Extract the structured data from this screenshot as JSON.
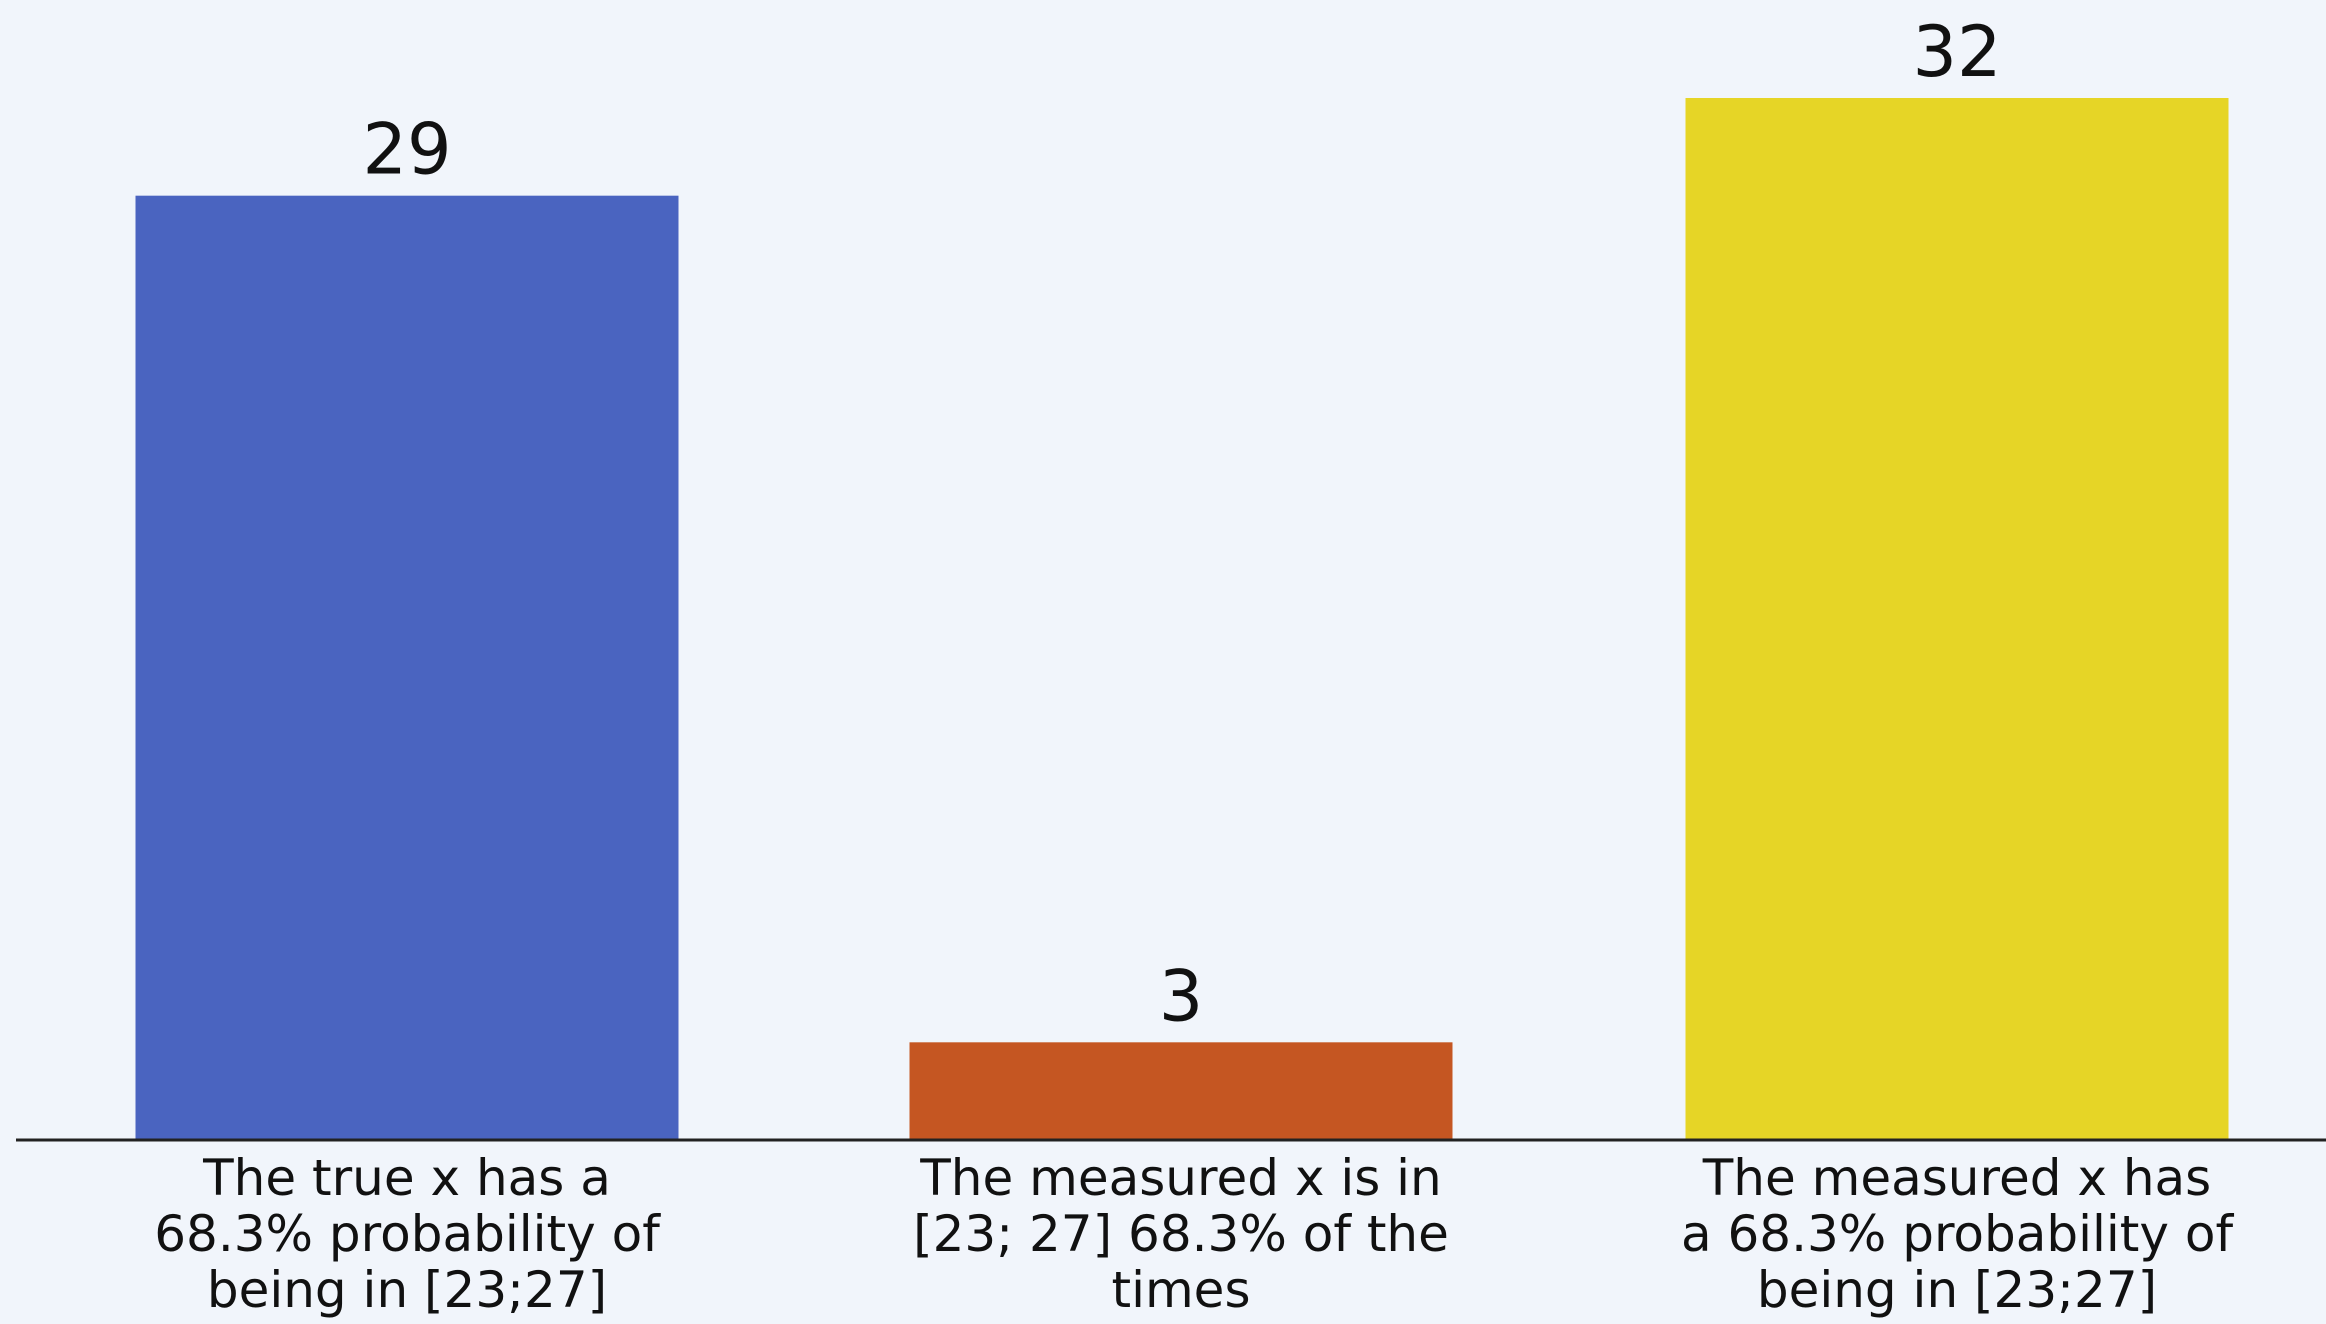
{
  "chart_data": {
    "type": "bar",
    "categories": [
      [
        "The true x has a",
        "68.3% probability of",
        "being in [23;27]"
      ],
      [
        "The measured x is in",
        "[23; 27] 68.3% of the",
        "times"
      ],
      [
        "The measured x has",
        "a 68.3% probability of",
        "being in [23;27]"
      ]
    ],
    "values": [
      29,
      3,
      32
    ],
    "data_labels": [
      "29",
      "3",
      "32"
    ],
    "colors": [
      "#4a64c0",
      "#c55622",
      "#e6d526"
    ],
    "ylim": [
      0,
      32
    ],
    "axis_color": "#222222",
    "background": "#f1f5fb",
    "title": "",
    "xlabel": "",
    "ylabel": "",
    "grid": false,
    "legend": "none"
  }
}
